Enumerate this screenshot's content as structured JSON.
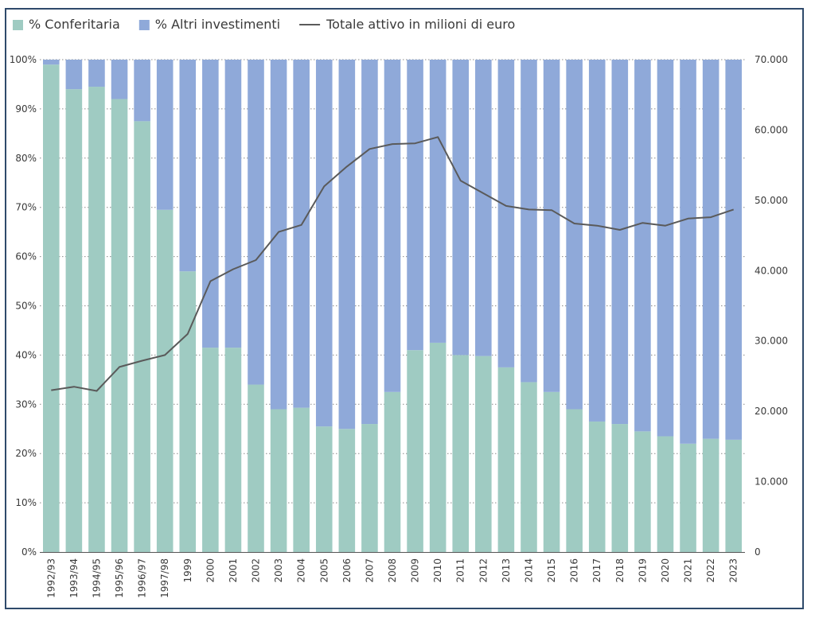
{
  "chart_data": {
    "type": "bar",
    "stacked": true,
    "categories": [
      "1992/93",
      "1993/94",
      "1994/95",
      "1995/96",
      "1996/97",
      "1997/98",
      "1999",
      "2000",
      "2001",
      "2002",
      "2003",
      "2004",
      "2005",
      "2006",
      "2007",
      "2008",
      "2009",
      "2010",
      "2011",
      "2012",
      "2013",
      "2014",
      "2015",
      "2016",
      "2017",
      "2018",
      "2019",
      "2020",
      "2021",
      "2022",
      "2023"
    ],
    "series": [
      {
        "name": "% Conferitaria",
        "kind": "bar",
        "color": "#9fcbc2",
        "axis": "left",
        "values": [
          99,
          94,
          94.5,
          92,
          87.5,
          69.5,
          57,
          41.5,
          41.5,
          34,
          29,
          29.3,
          25.5,
          25,
          26,
          32.5,
          41,
          42.5,
          40,
          39.8,
          37.5,
          34.5,
          32.5,
          29,
          26.5,
          26,
          24.5,
          23.5,
          22,
          23,
          22.8
        ]
      },
      {
        "name": "% Altri investimenti",
        "kind": "bar",
        "color": "#8fa9d9",
        "axis": "left",
        "values": [
          1,
          6,
          5.5,
          8,
          12.5,
          30.5,
          43,
          58.5,
          58.5,
          66,
          71,
          70.7,
          74.5,
          75,
          74,
          67.5,
          59,
          57.5,
          60,
          60.2,
          62.5,
          65.5,
          67.5,
          71,
          73.5,
          74,
          75.5,
          76.5,
          78,
          77,
          77.2
        ]
      },
      {
        "name": "Totale attivo in milioni di euro",
        "kind": "line",
        "color": "#5a5a5a",
        "axis": "right",
        "values": [
          23000,
          23500,
          22900,
          26300,
          27200,
          28000,
          31000,
          38500,
          40200,
          41500,
          45500,
          46500,
          52000,
          54800,
          57300,
          58000,
          58100,
          59000,
          52800,
          51000,
          49200,
          48700,
          48600,
          46700,
          46400,
          45800,
          46800,
          46400,
          47400,
          47600,
          48700
        ]
      }
    ],
    "left_axis": {
      "ylim": [
        0,
        100
      ],
      "ticks": [
        "0%",
        "10%",
        "20%",
        "30%",
        "40%",
        "50%",
        "60%",
        "70%",
        "80%",
        "90%",
        "100%"
      ]
    },
    "right_axis": {
      "ylim": [
        0,
        70000
      ],
      "ticks": [
        "0",
        "10.000",
        "20.000",
        "30.000",
        "40.000",
        "50.000",
        "60.000",
        "70.000"
      ]
    },
    "title": "",
    "xlabel": "",
    "ylabel": "",
    "grid": true,
    "legend_position": "top-left"
  }
}
